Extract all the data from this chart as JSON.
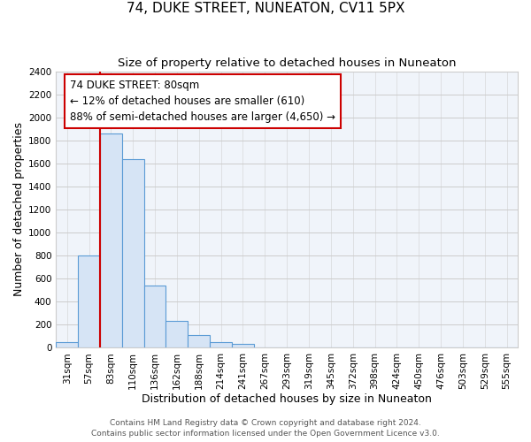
{
  "title": "74, DUKE STREET, NUNEATON, CV11 5PX",
  "subtitle": "Size of property relative to detached houses in Nuneaton",
  "xlabel": "Distribution of detached houses by size in Nuneaton",
  "ylabel": "Number of detached properties",
  "bar_labels": [
    "31sqm",
    "57sqm",
    "83sqm",
    "110sqm",
    "136sqm",
    "162sqm",
    "188sqm",
    "214sqm",
    "241sqm",
    "267sqm",
    "293sqm",
    "319sqm",
    "345sqm",
    "372sqm",
    "398sqm",
    "424sqm",
    "450sqm",
    "476sqm",
    "503sqm",
    "529sqm",
    "555sqm"
  ],
  "bar_values": [
    50,
    800,
    1860,
    1640,
    540,
    235,
    110,
    50,
    35,
    0,
    0,
    0,
    0,
    0,
    0,
    0,
    0,
    0,
    0,
    0,
    0
  ],
  "bar_color": "#d6e4f5",
  "bar_edge_color": "#5b9bd5",
  "vline_x_index": 2,
  "vline_color": "#cc0000",
  "ylim": [
    0,
    2400
  ],
  "yticks": [
    0,
    200,
    400,
    600,
    800,
    1000,
    1200,
    1400,
    1600,
    1800,
    2000,
    2200,
    2400
  ],
  "annotation_title": "74 DUKE STREET: 80sqm",
  "annotation_line1": "← 12% of detached houses are smaller (610)",
  "annotation_line2": "88% of semi-detached houses are larger (4,650) →",
  "annotation_box_color": "#ffffff",
  "annotation_box_edge": "#cc0000",
  "footer1": "Contains HM Land Registry data © Crown copyright and database right 2024.",
  "footer2": "Contains public sector information licensed under the Open Government Licence v3.0.",
  "title_fontsize": 11,
  "subtitle_fontsize": 9.5,
  "axis_label_fontsize": 9,
  "tick_fontsize": 7.5,
  "annotation_fontsize": 8.5,
  "footer_fontsize": 6.5,
  "grid_color": "#cccccc",
  "background_color": "#f0f4fa"
}
